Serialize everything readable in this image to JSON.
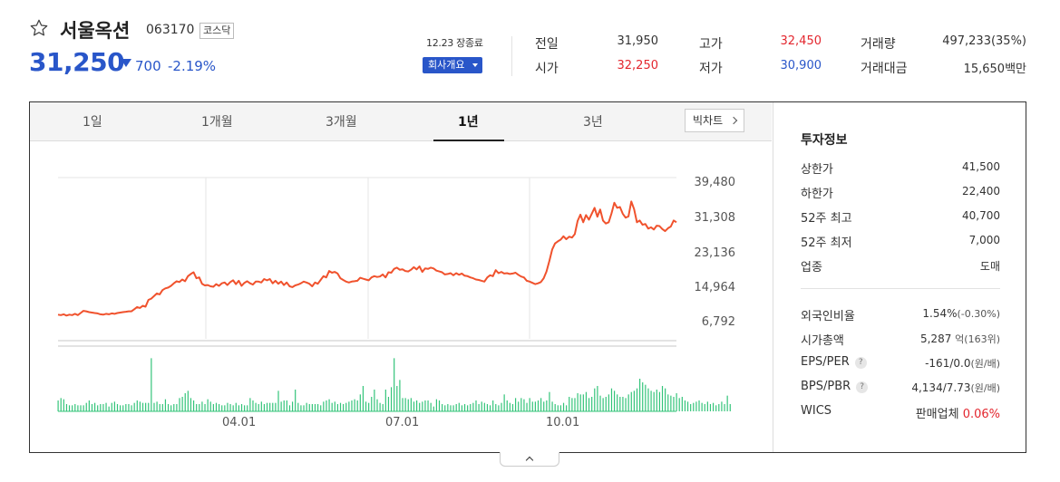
{
  "stock": {
    "name": "서울옥션",
    "code": "063170",
    "market": "코스닥",
    "price": "31,250",
    "change": "700",
    "change_pct": "-2.19%",
    "close_status": "12.23 장종료",
    "company_button": "회사개요"
  },
  "quote": {
    "prev_close_label": "전일",
    "prev_close": "31,950",
    "open_label": "시가",
    "open": "32,250",
    "high_label": "고가",
    "high": "32,450",
    "low_label": "저가",
    "low": "30,900",
    "volume_label": "거래량",
    "volume": "497,233(35%)",
    "value_label": "거래대금",
    "value": "15,650백만"
  },
  "tabs": [
    {
      "label": "1일"
    },
    {
      "label": "1개월"
    },
    {
      "label": "3개월"
    },
    {
      "label": "1년"
    },
    {
      "label": "3년"
    }
  ],
  "active_tab": "1년",
  "bigchart_label": "빅차트",
  "colors": {
    "up": "#e3262e",
    "down": "#2956c9",
    "price_line": "#f0522d",
    "volume": "#34c47a"
  },
  "icons": {
    "favorite": "star-outline-icon",
    "bigchart": "chevron-right-icon",
    "dropdown": "caret-down-icon",
    "change": "triangle-down-icon",
    "collapse": "chevron-up-icon"
  },
  "chart_data": {
    "type": "line",
    "period": "1년",
    "y_ticks": [
      "39,480",
      "31,308",
      "23,136",
      "14,964",
      "6,792"
    ],
    "ylim": [
      6792,
      39480
    ],
    "x_ticks": [
      "04.01",
      "07.01",
      "10.01"
    ],
    "series": [
      {
        "values": [
          8000,
          7900,
          8100,
          7800,
          8000,
          7900,
          8200,
          7900,
          8400,
          8900,
          8800,
          8600,
          8500,
          8400,
          8300,
          8100,
          8000,
          8200,
          8100,
          8300,
          8200,
          8400,
          8500,
          8600,
          8700,
          8800,
          8800,
          9300,
          9800,
          9600,
          10100,
          9900,
          11500,
          11800,
          12400,
          13000,
          12800,
          13800,
          14200,
          14400,
          14800,
          15400,
          15900,
          15700,
          16300,
          15900,
          17100,
          17600,
          18000,
          16600,
          16800,
          15300,
          14900,
          15000,
          14700,
          14600,
          15200,
          14800,
          15400,
          15600,
          15000,
          15700,
          16100,
          15200,
          16000,
          14800,
          15500,
          15900,
          15400,
          15100,
          15800,
          15800,
          15600,
          16400,
          16100,
          16400,
          15400,
          16000,
          15300,
          15800,
          15000,
          15600,
          14700,
          14500,
          14900,
          15100,
          15400,
          15800,
          15600,
          15300,
          14700,
          15600,
          15300,
          16200,
          17100,
          16800,
          18300,
          17900,
          18100,
          17700,
          16600,
          16200,
          15800,
          15600,
          15800,
          15900,
          16000,
          16700,
          16500,
          16300,
          16100,
          16800,
          17100,
          16900,
          17000,
          17500,
          16800,
          18000,
          17900,
          18800,
          19100,
          18600,
          18700,
          18300,
          18200,
          18600,
          19200,
          18700,
          19400,
          18100,
          18900,
          18800,
          19100,
          18900,
          18400,
          18200,
          18000,
          17500,
          17600,
          17800,
          17300,
          17800,
          17400,
          17700,
          17200,
          17100,
          16800,
          16600,
          16300,
          16200,
          16000,
          15800,
          16800,
          17300,
          17100,
          18500,
          17800,
          18100,
          17700,
          17800,
          17600,
          17700,
          17900,
          17400,
          17000,
          16800,
          16000,
          15800,
          15500,
          15200,
          15400,
          15700,
          16600,
          18200,
          20700,
          23400,
          24800,
          25300,
          25700,
          26500,
          25800,
          26400,
          26200,
          27000,
          30100,
          31600,
          29800,
          31500,
          30400,
          31800,
          33200,
          31100,
          32800,
          30200,
          29500,
          29800,
          31900,
          34400,
          33200,
          33400,
          31800,
          30900,
          31200,
          34700,
          32900,
          29800,
          30200,
          29200,
          29400,
          28300,
          28600,
          28100,
          29000,
          28900,
          28200,
          27700,
          28400,
          28800,
          30200,
          29800
        ],
        "volume_relative": [
          0.09,
          0.11,
          0.1,
          0.06,
          0.05,
          0.05,
          0.06,
          0.05,
          0.05,
          0.05,
          0.07,
          0.09,
          0.06,
          0.07,
          0.05,
          0.06,
          0.06,
          0.07,
          0.04,
          0.07,
          0.08,
          0.06,
          0.05,
          0.05,
          0.06,
          0.06,
          0.05,
          0.07,
          0.09,
          0.08,
          0.07,
          0.07,
          0.07,
          0.44,
          0.07,
          0.08,
          0.06,
          0.06,
          0.1,
          0.06,
          0.05,
          0.06,
          0.06,
          0.11,
          0.12,
          0.15,
          0.17,
          0.11,
          0.09,
          0.06,
          0.06,
          0.08,
          0.06,
          0.1,
          0.08,
          0.06,
          0.07,
          0.06,
          0.05,
          0.05,
          0.07,
          0.06,
          0.05,
          0.07,
          0.05,
          0.06,
          0.05,
          0.05,
          0.11,
          0.09,
          0.07,
          0.06,
          0.08,
          0.06,
          0.07,
          0.07,
          0.07,
          0.07,
          0.17,
          0.08,
          0.09,
          0.09,
          0.05,
          0.08,
          0.18,
          0.07,
          0.05,
          0.05,
          0.07,
          0.06,
          0.06,
          0.06,
          0.06,
          0.05,
          0.08,
          0.09,
          0.1,
          0.07,
          0.08,
          0.06,
          0.07,
          0.06,
          0.07,
          0.08,
          0.09,
          0.1,
          0.09,
          0.14,
          0.21,
          0.08,
          0.07,
          0.12,
          0.18,
          0.1,
          0.07,
          0.06,
          0.18,
          0.12,
          0.2,
          0.44,
          0.21,
          0.26,
          0.11,
          0.11,
          0.1,
          0.11,
          0.08,
          0.09,
          0.07,
          0.08,
          0.09,
          0.09,
          0.07,
          0.04,
          0.1,
          0.09,
          0.06,
          0.05,
          0.06,
          0.05,
          0.05,
          0.06,
          0.07,
          0.05,
          0.06,
          0.05,
          0.06,
          0.07,
          0.09,
          0.06,
          0.08,
          0.07,
          0.06,
          0.05,
          0.09,
          0.06,
          0.05,
          0.07,
          0.14,
          0.09,
          0.07,
          0.06,
          0.11,
          0.08,
          0.11,
          0.1,
          0.07,
          0.11,
          0.08,
          0.08,
          0.09,
          0.11,
          0.08,
          0.09,
          0.16,
          0.08,
          0.06,
          0.05,
          0.05,
          0.07,
          0.05,
          0.12,
          0.11,
          0.11,
          0.15,
          0.14,
          0.14,
          0.16,
          0.11,
          0.12,
          0.19,
          0.21,
          0.13,
          0.11,
          0.12,
          0.14,
          0.19,
          0.17,
          0.14,
          0.12,
          0.12,
          0.11,
          0.14,
          0.16,
          0.17,
          0.19,
          0.27,
          0.24,
          0.22,
          0.19,
          0.17,
          0.16,
          0.18,
          0.16,
          0.21,
          0.19,
          0.14,
          0.13,
          0.12,
          0.15,
          0.11,
          0.12,
          0.09,
          0.08,
          0.06,
          0.07,
          0.08,
          0.09,
          0.07,
          0.06,
          0.08,
          0.06,
          0.07,
          0.05,
          0.06,
          0.08,
          0.06,
          0.13,
          0.06
        ]
      }
    ]
  },
  "invest": {
    "title": "투자정보",
    "upper_limit_label": "상한가",
    "upper_limit": "41,500",
    "lower_limit_label": "하한가",
    "lower_limit": "22,400",
    "high52_label": "52주 최고",
    "high52": "40,700",
    "low52_label": "52주 최저",
    "low52": "7,000",
    "industry_label": "업종",
    "industry": "도매",
    "foreign_label": "외국인비율",
    "foreign": "1.54%",
    "foreign_chg": "(-0.30%)",
    "mcap_label": "시가총액",
    "mcap": "5,287",
    "mcap_unit": "억",
    "mcap_rank": "(163위)",
    "eps_per_label": "EPS/PER",
    "eps_per": "-161/0.0",
    "eps_per_unit": "(원/배)",
    "bps_pbr_label": "BPS/PBR",
    "bps_pbr": "4,134/7.73",
    "bps_pbr_unit": "(원/배)",
    "wics_label": "WICS",
    "wics": "판매업체",
    "wics_pct": "0.06%",
    "help_glyph": "?"
  }
}
